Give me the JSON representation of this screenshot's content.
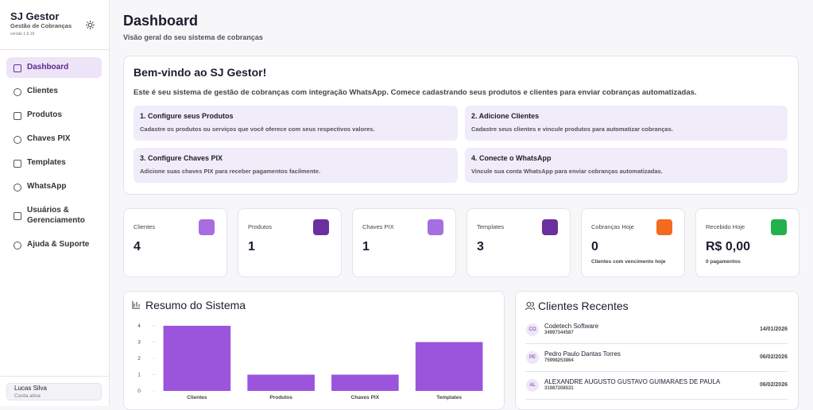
{
  "sidebar": {
    "brand": "SJ Gestor",
    "subtitle": "Gestão de Cobranças",
    "version": "versão 1.6.16",
    "nav": [
      "Dashboard",
      "Clientes",
      "Produtos",
      "Chaves PIX",
      "Templates",
      "WhatsApp",
      "Usuários & Gerenciamento",
      "Ajuda & Suporte"
    ],
    "user": {
      "name": "Lucas Silva",
      "status": "Conta ativa"
    }
  },
  "header": {
    "title": "Dashboard",
    "subtitle": "Visão geral do seu sistema de cobranças"
  },
  "welcome": {
    "title": "Bem-vindo ao SJ Gestor!",
    "text": "Este é seu sistema de gestão de cobranças com integração WhatsApp. Comece cadastrando seus produtos e clientes para enviar cobranças automatizadas.",
    "steps": [
      {
        "title": "1. Configure seus Produtos",
        "text": "Cadastre os produtos ou serviços que você oferece com seus respectivos valores."
      },
      {
        "title": "2. Adicione Clientes",
        "text": "Cadastre seus clientes e vincule produtos para automatizar cobranças."
      },
      {
        "title": "3. Configure Chaves PIX",
        "text": "Adicione suas chaves PIX para receber pagamentos facilmente."
      },
      {
        "title": "4. Conecte o WhatsApp",
        "text": "Vincule sua conta WhatsApp para enviar cobranças automatizadas."
      }
    ]
  },
  "stats": [
    {
      "label": "Clientes",
      "value": 4,
      "color": "#a66ee0"
    },
    {
      "label": "Produtos",
      "value": 1,
      "color": "#6b2fa0"
    },
    {
      "label": "Chaves PIX",
      "value": 1,
      "color": "#a66ee0"
    },
    {
      "label": "Templates",
      "value": 3,
      "color": "#6b2fa0"
    },
    {
      "label": "Cobranças Hoje",
      "value": 0,
      "note": "Clientes com vencimento hoje",
      "color": "#f26b21"
    },
    {
      "label": "Recebido Hoje",
      "value": "R$ 0,00",
      "note": "0 pagamentos",
      "color": "#22b14c"
    }
  ],
  "chart_data": {
    "type": "bar",
    "title": "Resumo do Sistema",
    "categories": [
      "Clientes",
      "Produtos",
      "Chaves PIX",
      "Templates"
    ],
    "values": [
      4,
      1,
      1,
      3
    ],
    "color": "#9b55dc",
    "ylim": [
      0,
      4
    ],
    "yticks": [
      0,
      1,
      2,
      3,
      4
    ]
  },
  "recent": {
    "title": "Clientes Recentes",
    "clients": [
      {
        "initials": "CO",
        "name": "Codetech Software",
        "phone": "34997344587",
        "date": "14/01/2026"
      },
      {
        "initials": "PE",
        "name": "Pedro Paulo Dantas Torres",
        "phone": "75998253864",
        "date": "06/02/2026"
      },
      {
        "initials": "AL",
        "name": "ALEXANDRE AUGUSTO GUSTAVO GUIMARAES DE PAULA",
        "phone": "31987208531",
        "date": "06/02/2026"
      }
    ]
  }
}
